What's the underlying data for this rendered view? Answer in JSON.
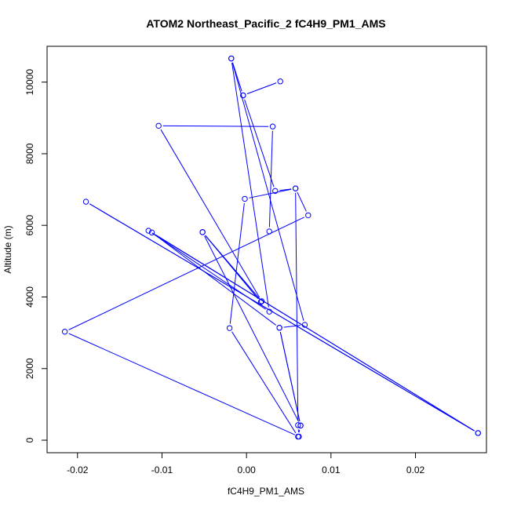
{
  "chart_data": {
    "type": "line",
    "title": "ATOM2 Northeast_Pacific_2 fC4H9_PM1_AMS",
    "xlabel": "fC4H9_PM1_AMS",
    "ylabel": "Altitude (m)",
    "xlim": [
      -0.0236,
      0.0284
    ],
    "ylim": [
      -350,
      11000
    ],
    "x_ticks": [
      -0.02,
      -0.01,
      0.0,
      0.01,
      0.02
    ],
    "x_tick_labels": [
      "-0.02",
      "-0.01",
      "0.00",
      "0.01",
      "0.02"
    ],
    "y_ticks": [
      0,
      2000,
      4000,
      6000,
      8000,
      10000
    ],
    "y_tick_labels": [
      "0",
      "2000",
      "4000",
      "6000",
      "8000",
      "10000"
    ],
    "grid": false,
    "legend": "none",
    "series": [
      {
        "color": "#0000ff",
        "marker": "open-circle",
        "points": [
          {
            "x": -0.0018,
            "y": 10660
          },
          {
            "x": 0.0069,
            "y": 3220
          },
          {
            "x": 0.0039,
            "y": 3140
          },
          {
            "x": 0.0064,
            "y": 410
          },
          {
            "x": 0.0061,
            "y": 100
          },
          {
            "x": -0.002,
            "y": 3130
          },
          {
            "x": -0.0002,
            "y": 6740
          },
          {
            "x": 0.0058,
            "y": 7030
          },
          {
            "x": 0.0061,
            "y": 420
          },
          {
            "x": 0.0062,
            "y": 100
          },
          {
            "x": -0.0215,
            "y": 3030
          },
          {
            "x": 0.0073,
            "y": 6280
          },
          {
            "x": 0.0058,
            "y": 7030
          },
          {
            "x": 0.0034,
            "y": 6960
          },
          {
            "x": -0.0004,
            "y": 9630
          },
          {
            "x": 0.004,
            "y": 10020
          },
          {
            "x": -0.0004,
            "y": 9630
          },
          {
            "x": -0.0018,
            "y": 10660
          },
          {
            "x": 0.0027,
            "y": 3590
          },
          {
            "x": -0.0116,
            "y": 5850
          },
          {
            "x": 0.0274,
            "y": 200
          },
          {
            "x": -0.019,
            "y": 6660
          },
          {
            "x": 0.0274,
            "y": 200
          },
          {
            "x": -0.0112,
            "y": 5800
          },
          {
            "x": 0.0039,
            "y": 3140
          },
          {
            "x": 0.0064,
            "y": 410
          },
          {
            "x": -0.0052,
            "y": 5810
          },
          {
            "x": 0.0017,
            "y": 3860
          },
          {
            "x": -0.0052,
            "y": 5810
          },
          {
            "x": 0.0018,
            "y": 3880
          },
          {
            "x": -0.0104,
            "y": 8780
          },
          {
            "x": 0.0031,
            "y": 8760
          },
          {
            "x": 0.0027,
            "y": 5830
          }
        ]
      }
    ]
  }
}
